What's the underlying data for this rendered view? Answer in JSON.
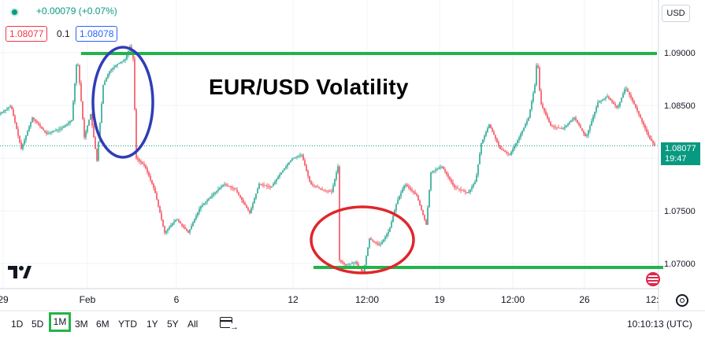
{
  "header": {
    "change": "+0.00079 (+0.07%)",
    "bid": "1.08077",
    "spread": "0.1",
    "ask": "1.08078",
    "currency": "USD"
  },
  "current_tag": {
    "price": "1.08077",
    "countdown": "19:47"
  },
  "colors": {
    "up": "#089981",
    "down": "#f23645",
    "line": "#23b34a",
    "ellipse_blue": "#2f3db8",
    "ellipse_red": "#e0262b"
  },
  "bottom": {
    "ranges": [
      "1D",
      "5D",
      "1M",
      "3M",
      "6M",
      "YTD",
      "1Y",
      "5Y",
      "All"
    ],
    "active_range": "1M",
    "clock": "10:10:13 (UTC)"
  },
  "icons": [
    "status-dot-icon",
    "tradingview-logo-icon",
    "calendar-goto-icon",
    "settings-icon",
    "usd-flag-icon"
  ],
  "chart_data": {
    "type": "candlestick",
    "title": "EUR/USD Volatility",
    "x_tick_labels": [
      "29",
      "Feb",
      "6",
      "12",
      "12:00",
      "19",
      "12:00",
      "26",
      "12:"
    ],
    "y_tick_labels": [
      "1.09000",
      "1.08500",
      "1.08000",
      "1.07500",
      "1.07000"
    ],
    "ylim": [
      1.0685,
      1.0933
    ],
    "current_price": 1.08077,
    "horizontal_levels": [
      1.0898,
      1.0696
    ],
    "price_path": [
      [
        0,
        1.0835
      ],
      [
        15,
        1.0842
      ],
      [
        28,
        1.0805
      ],
      [
        42,
        1.0832
      ],
      [
        60,
        1.0818
      ],
      [
        80,
        1.0823
      ],
      [
        92,
        1.083
      ],
      [
        99,
        1.0885
      ],
      [
        108,
        1.0815
      ],
      [
        116,
        1.0835
      ],
      [
        124,
        1.0795
      ],
      [
        132,
        1.086
      ],
      [
        140,
        1.0872
      ],
      [
        150,
        1.0878
      ],
      [
        160,
        1.0882
      ],
      [
        166,
        1.0893
      ],
      [
        171,
        1.088
      ],
      [
        173,
        1.0798
      ],
      [
        185,
        1.079
      ],
      [
        197,
        1.077
      ],
      [
        210,
        1.0733
      ],
      [
        225,
        1.0745
      ],
      [
        240,
        1.0733
      ],
      [
        255,
        1.0755
      ],
      [
        270,
        1.0765
      ],
      [
        285,
        1.0775
      ],
      [
        300,
        1.077
      ],
      [
        318,
        1.075
      ],
      [
        330,
        1.0775
      ],
      [
        345,
        1.0772
      ],
      [
        358,
        1.0785
      ],
      [
        372,
        1.0797
      ],
      [
        384,
        1.08
      ],
      [
        395,
        1.0775
      ],
      [
        410,
        1.077
      ],
      [
        422,
        1.0768
      ],
      [
        430,
        1.079
      ],
      [
        431,
        1.071
      ],
      [
        440,
        1.0705
      ],
      [
        452,
        1.0708
      ],
      [
        462,
        1.0698
      ],
      [
        470,
        1.0728
      ],
      [
        483,
        1.0722
      ],
      [
        495,
        1.0735
      ],
      [
        505,
        1.076
      ],
      [
        515,
        1.0775
      ],
      [
        530,
        1.0765
      ],
      [
        542,
        1.074
      ],
      [
        548,
        1.0785
      ],
      [
        562,
        1.079
      ],
      [
        578,
        1.0772
      ],
      [
        595,
        1.0767
      ],
      [
        605,
        1.0778
      ],
      [
        612,
        1.081
      ],
      [
        622,
        1.0826
      ],
      [
        636,
        1.0805
      ],
      [
        648,
        1.08
      ],
      [
        660,
        1.0815
      ],
      [
        672,
        1.0832
      ],
      [
        680,
        1.086
      ],
      [
        683,
        1.0885
      ],
      [
        687,
        1.0845
      ],
      [
        700,
        1.0825
      ],
      [
        715,
        1.0822
      ],
      [
        730,
        1.0832
      ],
      [
        745,
        1.0815
      ],
      [
        760,
        1.0845
      ],
      [
        772,
        1.085
      ],
      [
        785,
        1.084
      ],
      [
        795,
        1.0858
      ],
      [
        805,
        1.0845
      ],
      [
        815,
        1.083
      ],
      [
        825,
        1.0815
      ],
      [
        832,
        1.08077
      ]
    ]
  }
}
